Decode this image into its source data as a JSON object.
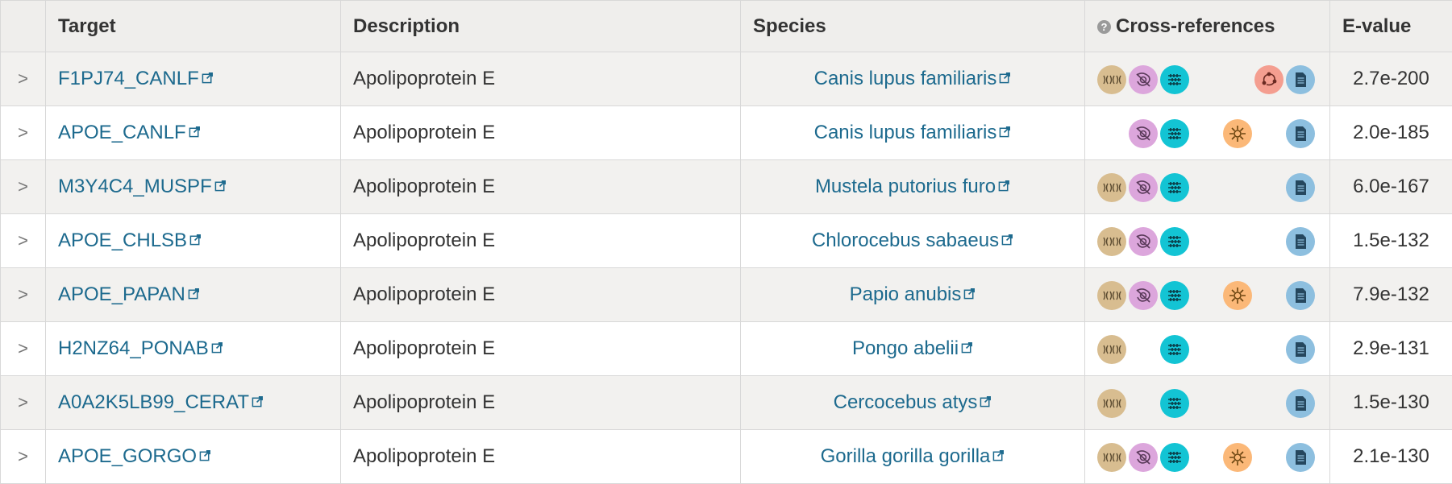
{
  "headers": {
    "expand": "",
    "target": "Target",
    "description": "Description",
    "species": "Species",
    "xrefs": "Cross-references",
    "evalue": "E-value",
    "help_glyph": "?"
  },
  "expand_glyph": ">",
  "xref_colors": {
    "dna": "#d8bd90",
    "structure": "#dca6dc",
    "domain": "#13c4d4",
    "pathway": "#fbb878",
    "network": "#f49e90",
    "literature": "#8dbfdf"
  },
  "rows": [
    {
      "target": "F1PJ74_CANLF",
      "description": "Apolipoprotein E",
      "species": "Canis lupus familiaris",
      "xrefs": [
        "dna",
        "structure",
        "domain",
        "network",
        "literature"
      ],
      "evalue": "2.7e-200"
    },
    {
      "target": "APOE_CANLF",
      "description": "Apolipoprotein E",
      "species": "Canis lupus familiaris",
      "xrefs": [
        "structure",
        "domain",
        "pathway",
        "literature"
      ],
      "evalue": "2.0e-185"
    },
    {
      "target": "M3Y4C4_MUSPF",
      "description": "Apolipoprotein E",
      "species": "Mustela putorius furo",
      "xrefs": [
        "dna",
        "structure",
        "domain",
        "literature"
      ],
      "evalue": "6.0e-167"
    },
    {
      "target": "APOE_CHLSB",
      "description": "Apolipoprotein E",
      "species": "Chlorocebus sabaeus",
      "xrefs": [
        "dna",
        "structure",
        "domain",
        "literature"
      ],
      "evalue": "1.5e-132"
    },
    {
      "target": "APOE_PAPAN",
      "description": "Apolipoprotein E",
      "species": "Papio anubis",
      "xrefs": [
        "dna",
        "structure",
        "domain",
        "pathway",
        "literature"
      ],
      "evalue": "7.9e-132"
    },
    {
      "target": "H2NZ64_PONAB",
      "description": "Apolipoprotein E",
      "species": "Pongo abelii",
      "xrefs": [
        "dna",
        "domain",
        "literature"
      ],
      "evalue": "2.9e-131"
    },
    {
      "target": "A0A2K5LB99_CERAT",
      "description": "Apolipoprotein E",
      "species": "Cercocebus atys",
      "xrefs": [
        "dna",
        "domain",
        "literature"
      ],
      "evalue": "1.5e-130"
    },
    {
      "target": "APOE_GORGO",
      "description": "Apolipoprotein E",
      "species": "Gorilla gorilla gorilla",
      "xrefs": [
        "dna",
        "structure",
        "domain",
        "pathway",
        "literature"
      ],
      "evalue": "2.1e-130"
    }
  ]
}
